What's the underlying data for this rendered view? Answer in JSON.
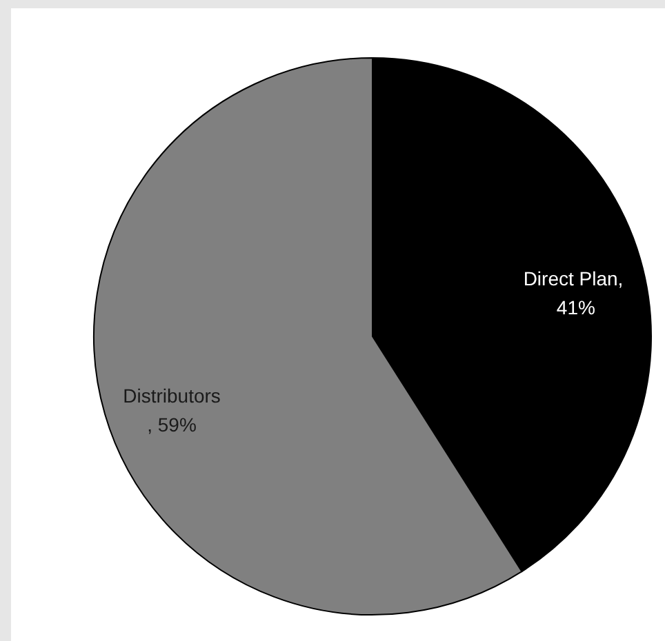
{
  "chart_data": {
    "type": "pie",
    "categories": [
      "Direct Plan",
      "Distributors"
    ],
    "values": [
      41,
      59
    ],
    "colors": [
      "#000000",
      "#808080"
    ],
    "value_labels": [
      ", 41%",
      ", 59%"
    ]
  }
}
